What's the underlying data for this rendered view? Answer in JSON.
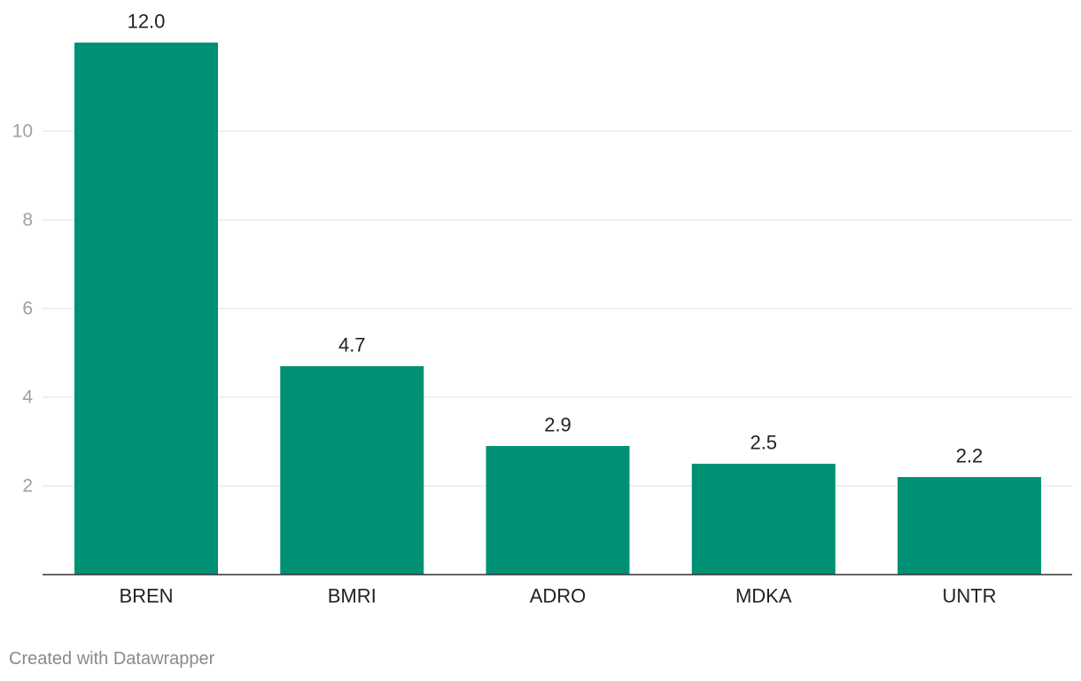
{
  "colors": {
    "bar": "#009175",
    "grid": "#e2e2e2",
    "axis": "#333333",
    "tick_text": "#a0a0a0",
    "label_text": "#222222"
  },
  "chart_data": {
    "type": "bar",
    "categories": [
      "BREN",
      "BMRI",
      "ADRO",
      "MDKA",
      "UNTR"
    ],
    "values": [
      12.0,
      4.7,
      2.9,
      2.5,
      2.2
    ],
    "value_labels": [
      "12.0",
      "4.7",
      "2.9",
      "2.5",
      "2.2"
    ],
    "yticks": [
      2,
      4,
      6,
      8,
      10
    ],
    "ylim": [
      0,
      12
    ],
    "grid": true,
    "legend": "none"
  },
  "footer": {
    "credit": "Created with Datawrapper"
  }
}
